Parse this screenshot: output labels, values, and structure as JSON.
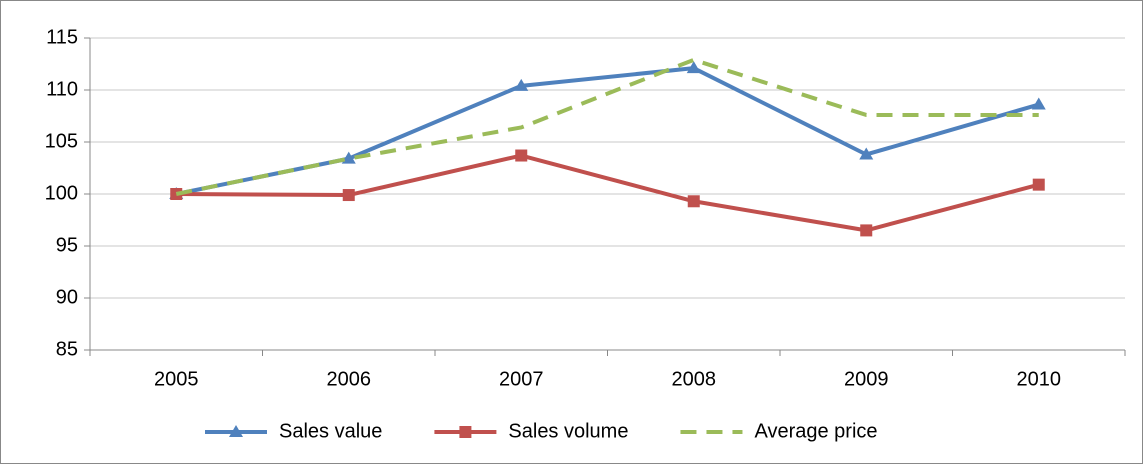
{
  "chart_data": {
    "type": "line",
    "categories": [
      "2005",
      "2006",
      "2007",
      "2008",
      "2009",
      "2010"
    ],
    "series": [
      {
        "name": "Sales value",
        "color": "#4f81bd",
        "marker": "triangle",
        "values": [
          100,
          103.4,
          110.4,
          112.1,
          103.8,
          108.6
        ]
      },
      {
        "name": "Sales volume",
        "color": "#c0504d",
        "marker": "square",
        "values": [
          100,
          99.9,
          103.7,
          99.3,
          96.5,
          100.9
        ]
      },
      {
        "name": "Average price",
        "color": "#9bbb59",
        "dashed": true,
        "values": [
          100,
          103.4,
          106.4,
          112.9,
          107.6,
          107.6
        ]
      }
    ],
    "ylim": [
      85,
      115
    ],
    "yticks": [
      85,
      90,
      95,
      100,
      105,
      110,
      115
    ],
    "grid": true,
    "legend": "bottom"
  }
}
